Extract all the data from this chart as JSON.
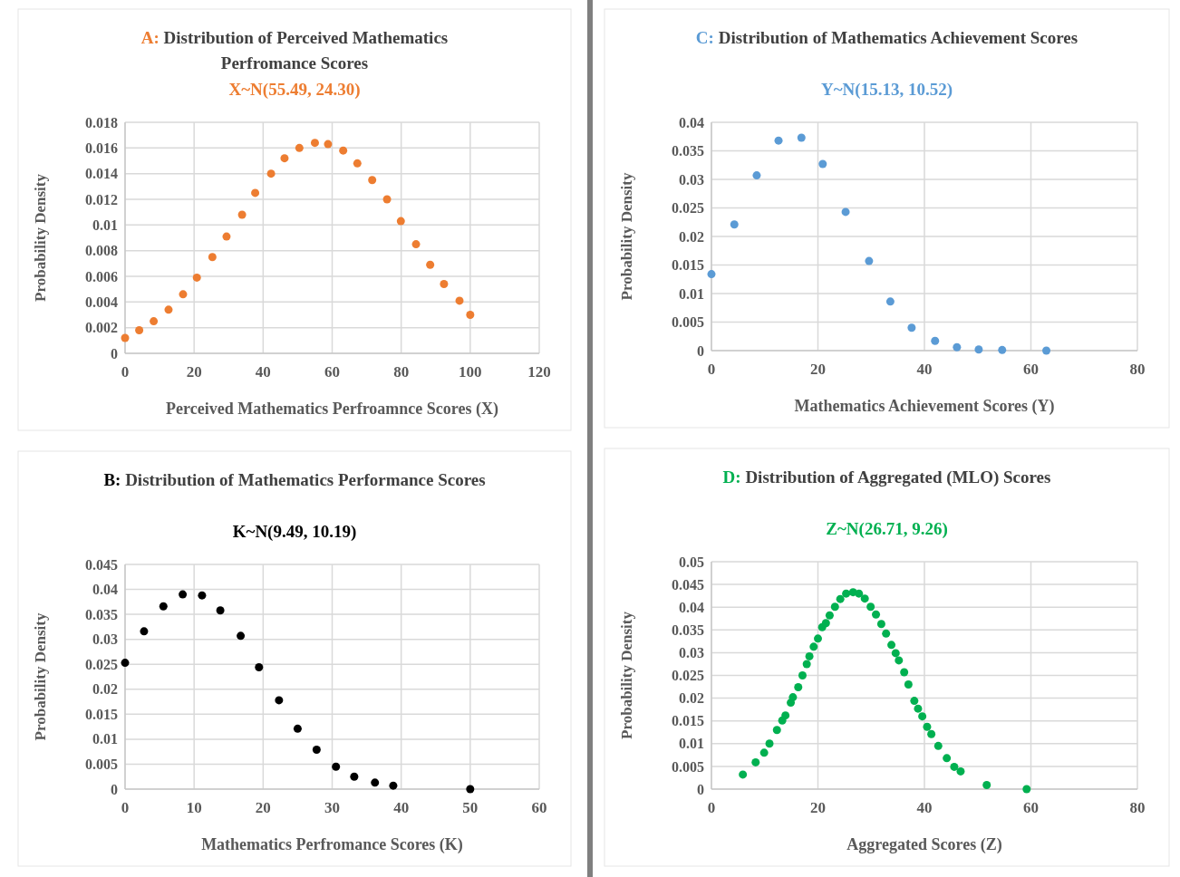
{
  "chart_data": [
    {
      "type": "scatter",
      "title": "A: Distribution of Perceived Mathematics Perfromance Scores",
      "subtitle": "X~N(55.49, 24.30)",
      "xlabel": "Perceived Mathematics Perfroamnce Scores (X)",
      "ylabel": "Probability Density",
      "x": [
        0,
        4.1,
        8.3,
        12.6,
        16.8,
        20.8,
        25.3,
        29.4,
        33.9,
        37.7,
        42.3,
        46.2,
        50.5,
        55,
        58.8,
        63.2,
        67.3,
        71.6,
        75.9,
        79.9,
        84.3,
        88.4,
        92.4,
        96.9,
        100
      ],
      "series": [
        {
          "color": "#ed7d31",
          "values": [
            0.0012,
            0.0018,
            0.0025,
            0.0034,
            0.0046,
            0.0059,
            0.0075,
            0.0091,
            0.0108,
            0.0125,
            0.014,
            0.0152,
            0.016,
            0.0164,
            0.0163,
            0.0158,
            0.0148,
            0.0135,
            0.012,
            0.0103,
            0.0085,
            0.0069,
            0.0054,
            0.0041,
            0.003
          ]
        }
      ],
      "xlim": [
        0,
        120
      ],
      "xticks": [
        0,
        20,
        40,
        60,
        80,
        100,
        120
      ],
      "ylim": [
        0,
        0.018
      ],
      "yticks": [
        0,
        0.002,
        0.004,
        0.006,
        0.008,
        0.01,
        0.012,
        0.014,
        0.016,
        0.018
      ],
      "grid": true,
      "marker": "circle"
    },
    {
      "type": "scatter",
      "title": "C: Distribution of Mathematics Achievement Scores",
      "subtitle": "Y~N(15.13, 10.52)",
      "xlabel": "Mathematics Achievement Scores (Y)",
      "ylabel": "Probability Density",
      "x": [
        0,
        4.3,
        8.5,
        12.6,
        16.9,
        20.9,
        25.2,
        29.6,
        33.6,
        37.6,
        42,
        46.1,
        50.2,
        54.6,
        62.9
      ],
      "series": [
        {
          "color": "#5b9bd5",
          "values": [
            0.0134,
            0.0221,
            0.0307,
            0.0368,
            0.0373,
            0.0327,
            0.0243,
            0.0157,
            0.0086,
            0.004,
            0.0017,
            0.0006,
            0.0002,
            0.0001,
            0
          ]
        }
      ],
      "xlim": [
        0,
        80
      ],
      "xticks": [
        0,
        20,
        40,
        60,
        80
      ],
      "ylim": [
        0,
        0.04
      ],
      "yticks": [
        0,
        0.005,
        0.01,
        0.015,
        0.02,
        0.025,
        0.03,
        0.035,
        0.04
      ],
      "grid": true,
      "marker": "circle"
    },
    {
      "type": "scatter",
      "title": "B: Distribution of Mathematics Performance Scores",
      "subtitle": "K~N(9.49, 10.19)",
      "xlabel": "Mathematics Perfromance Scores (K)",
      "ylabel": "Probability Density",
      "x": [
        0,
        2.75,
        5.55,
        8.35,
        11.15,
        13.8,
        16.75,
        19.4,
        22.3,
        25,
        27.75,
        30.55,
        33.2,
        36.2,
        38.85,
        50
      ],
      "series": [
        {
          "color": "#000000",
          "values": [
            0.0253,
            0.0316,
            0.0366,
            0.039,
            0.0388,
            0.0358,
            0.0307,
            0.0244,
            0.0178,
            0.0121,
            0.0079,
            0.0045,
            0.0025,
            0.0013,
            0.0007,
            0
          ]
        }
      ],
      "xlim": [
        0,
        60
      ],
      "xticks": [
        0,
        10,
        20,
        30,
        40,
        50,
        60
      ],
      "ylim": [
        0,
        0.045
      ],
      "yticks": [
        0,
        0.005,
        0.01,
        0.015,
        0.02,
        0.025,
        0.03,
        0.035,
        0.04,
        0.045
      ],
      "grid": true,
      "marker": "circle"
    },
    {
      "type": "scatter",
      "title": "D: Distribution of Aggregated (MLO) Scores",
      "subtitle": "Z~N(26.71, 9.26)",
      "xlabel": "Aggregated Scores (Z)",
      "ylabel": "Probability Density",
      "x": [
        5.9,
        8.3,
        9.9,
        10.9,
        12.3,
        13.3,
        13.9,
        14.9,
        15.3,
        16.3,
        17.1,
        17.9,
        18.4,
        19.2,
        20,
        20.8,
        21.5,
        22.2,
        23.2,
        24.2,
        25.3,
        26.6,
        27.7,
        28.8,
        29.9,
        30.9,
        31.9,
        32.8,
        33.8,
        34.6,
        35.2,
        36.2,
        37,
        38.1,
        38.8,
        39.6,
        40.5,
        41.3,
        42.6,
        44.2,
        45.6,
        46.8,
        51.7,
        59.2
      ],
      "series": [
        {
          "color": "#00b050",
          "values": [
            0.0032,
            0.0059,
            0.008,
            0.01,
            0.013,
            0.0151,
            0.0162,
            0.019,
            0.0202,
            0.0224,
            0.025,
            0.0275,
            0.0292,
            0.0313,
            0.0331,
            0.0356,
            0.0365,
            0.0382,
            0.0401,
            0.0418,
            0.043,
            0.0433,
            0.043,
            0.0419,
            0.0401,
            0.0384,
            0.0363,
            0.0342,
            0.0317,
            0.0299,
            0.0283,
            0.0257,
            0.023,
            0.0194,
            0.0177,
            0.016,
            0.0137,
            0.0121,
            0.0095,
            0.0068,
            0.0049,
            0.0039,
            0.0009,
            0
          ]
        }
      ],
      "xlim": [
        0,
        80
      ],
      "xticks": [
        0,
        20,
        40,
        60,
        80
      ],
      "ylim": [
        0,
        0.05
      ],
      "yticks": [
        0,
        0.005,
        0.01,
        0.015,
        0.02,
        0.025,
        0.03,
        0.035,
        0.04,
        0.045,
        0.05
      ],
      "grid": true,
      "marker": "circle"
    }
  ]
}
